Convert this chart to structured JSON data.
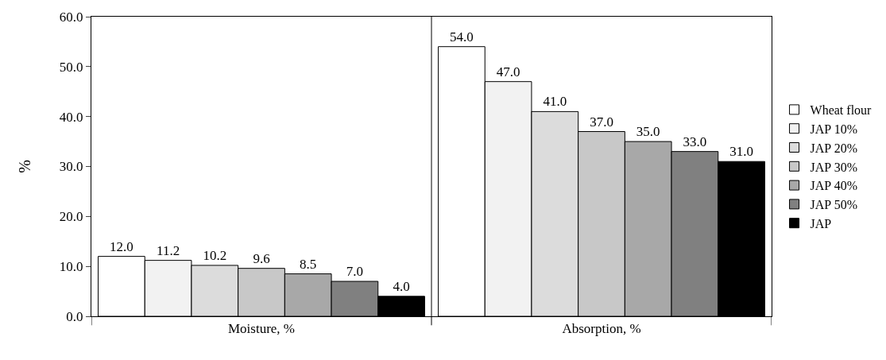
{
  "chart_data": {
    "type": "bar",
    "ylabel": "%",
    "categories": [
      "Moisture, %",
      "Absorption, %"
    ],
    "series": [
      {
        "name": "Wheat flour",
        "color": "#ffffff",
        "values": [
          12.0,
          54.0
        ],
        "value_labels": [
          "12.0",
          "54.0"
        ]
      },
      {
        "name": "JAP 10%",
        "color": "#f2f2f2",
        "values": [
          11.2,
          47.0
        ],
        "value_labels": [
          "11.2",
          "47.0"
        ]
      },
      {
        "name": "JAP 20%",
        "color": "#dcdcdc",
        "values": [
          10.2,
          41.0
        ],
        "value_labels": [
          "10.2",
          "41.0"
        ]
      },
      {
        "name": "JAP 30%",
        "color": "#c8c8c8",
        "values": [
          9.6,
          37.0
        ],
        "value_labels": [
          "9.6",
          "37.0"
        ]
      },
      {
        "name": "JAP 40%",
        "color": "#a8a8a8",
        "values": [
          8.5,
          35.0
        ],
        "value_labels": [
          "8.5",
          "35.0"
        ]
      },
      {
        "name": "JAP 50%",
        "color": "#808080",
        "values": [
          7.0,
          33.0
        ],
        "value_labels": [
          "7.0",
          "33.0"
        ]
      },
      {
        "name": "JAP",
        "color": "#000000",
        "values": [
          4.0,
          31.0
        ],
        "value_labels": [
          "4.0",
          "31.0"
        ]
      }
    ],
    "ylim": [
      0,
      60
    ],
    "yticks": [
      {
        "value": 0,
        "label": "0.0"
      },
      {
        "value": 10,
        "label": "10.0"
      },
      {
        "value": 20,
        "label": "20.0"
      },
      {
        "value": 30,
        "label": "30.0"
      },
      {
        "value": 40,
        "label": "40.0"
      },
      {
        "value": 50,
        "label": "50.0"
      },
      {
        "value": 60,
        "label": "60.0"
      }
    ],
    "grid": false,
    "legend": "right"
  }
}
